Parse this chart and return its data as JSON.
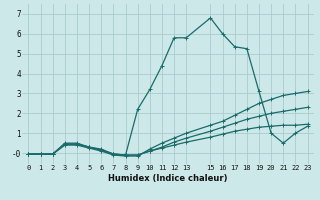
{
  "xlabel": "Humidex (Indice chaleur)",
  "bg_color": "#cce8e8",
  "grid_color": "#aacccc",
  "line_color": "#1a6b6b",
  "xlim": [
    -0.5,
    23.5
  ],
  "ylim": [
    -0.55,
    7.5
  ],
  "xtick_labels": [
    "0",
    "1",
    "2",
    "3",
    "4",
    "5",
    "6",
    "7",
    "8",
    "9",
    "10",
    "11",
    "12",
    "13",
    "15",
    "16",
    "17",
    "18",
    "19",
    "20",
    "21",
    "22",
    "23"
  ],
  "xtick_vals": [
    0,
    1,
    2,
    3,
    4,
    5,
    6,
    7,
    8,
    9,
    10,
    11,
    12,
    13,
    15,
    16,
    17,
    18,
    19,
    20,
    21,
    22,
    23
  ],
  "ytick_vals": [
    0,
    1,
    2,
    3,
    4,
    5,
    6,
    7
  ],
  "ytick_labels": [
    "-0",
    "1",
    "2",
    "3",
    "4",
    "5",
    "6",
    "7"
  ],
  "series": [
    {
      "x": [
        0,
        1,
        2,
        3,
        4,
        5,
        6,
        7,
        8,
        9,
        10,
        11,
        12,
        13,
        15,
        16,
        17,
        18,
        19,
        20,
        21,
        22,
        23
      ],
      "y": [
        -0.05,
        -0.05,
        -0.05,
        0.5,
        0.5,
        0.3,
        0.2,
        -0.05,
        -0.1,
        2.2,
        3.2,
        4.4,
        5.8,
        5.8,
        6.8,
        6.0,
        5.35,
        5.25,
        3.1,
        1.0,
        0.5,
        1.0,
        1.35
      ]
    },
    {
      "x": [
        0,
        1,
        2,
        3,
        4,
        5,
        6,
        7,
        8,
        9,
        10,
        11,
        12,
        13,
        15,
        16,
        17,
        18,
        19,
        20,
        21,
        22,
        23
      ],
      "y": [
        -0.05,
        -0.05,
        -0.05,
        0.4,
        0.4,
        0.25,
        0.1,
        -0.1,
        -0.15,
        -0.15,
        0.2,
        0.5,
        0.75,
        1.0,
        1.4,
        1.6,
        1.9,
        2.2,
        2.5,
        2.7,
        2.9,
        3.0,
        3.1
      ]
    },
    {
      "x": [
        0,
        1,
        2,
        3,
        4,
        5,
        6,
        7,
        8,
        9,
        10,
        11,
        12,
        13,
        15,
        16,
        17,
        18,
        19,
        20,
        21,
        22,
        23
      ],
      "y": [
        -0.05,
        -0.05,
        -0.05,
        0.45,
        0.45,
        0.3,
        0.15,
        -0.05,
        -0.1,
        -0.1,
        0.1,
        0.3,
        0.55,
        0.75,
        1.1,
        1.3,
        1.5,
        1.7,
        1.85,
        2.0,
        2.1,
        2.2,
        2.3
      ]
    },
    {
      "x": [
        0,
        1,
        2,
        3,
        4,
        5,
        6,
        7,
        8,
        9,
        10,
        11,
        12,
        13,
        15,
        16,
        17,
        18,
        19,
        20,
        21,
        22,
        23
      ],
      "y": [
        -0.05,
        -0.05,
        -0.05,
        0.45,
        0.45,
        0.3,
        0.15,
        -0.05,
        -0.1,
        -0.1,
        0.1,
        0.25,
        0.4,
        0.55,
        0.8,
        0.95,
        1.1,
        1.2,
        1.3,
        1.35,
        1.4,
        1.4,
        1.45
      ]
    }
  ]
}
